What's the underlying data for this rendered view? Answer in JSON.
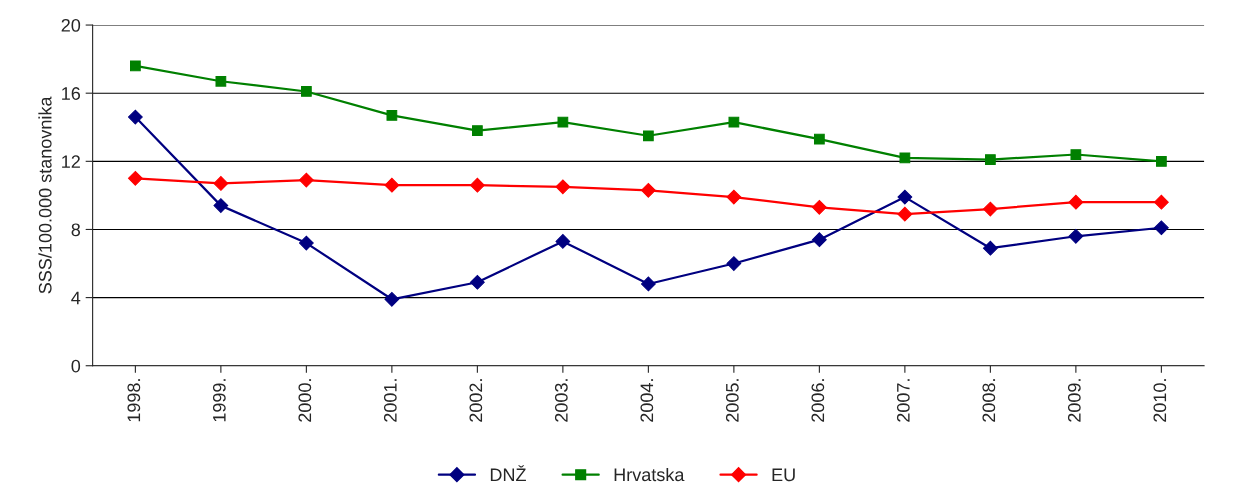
{
  "chart_data": {
    "type": "line",
    "ylabel": "SSS/100.000 stanovnika",
    "categories": [
      "1998.",
      "1999.",
      "2000.",
      "2001.",
      "2002.",
      "2003.",
      "2004.",
      "2005.",
      "2006.",
      "2007.",
      "2008.",
      "2009.",
      "2010."
    ],
    "series": [
      {
        "name": "DNŽ",
        "color": "#000080",
        "marker": "diamond",
        "values": [
          14.6,
          9.4,
          7.2,
          3.9,
          4.9,
          7.3,
          4.8,
          6.0,
          7.4,
          9.9,
          6.9,
          7.6,
          8.1
        ]
      },
      {
        "name": "Hrvatska",
        "color": "#008000",
        "marker": "square",
        "values": [
          17.6,
          16.7,
          16.1,
          14.7,
          13.8,
          14.3,
          13.5,
          14.3,
          13.3,
          12.2,
          12.1,
          12.4,
          12.0
        ]
      },
      {
        "name": "EU",
        "color": "#ff0000",
        "marker": "diamond",
        "values": [
          11.0,
          10.7,
          10.9,
          10.6,
          10.6,
          10.5,
          10.3,
          9.9,
          9.3,
          8.9,
          9.2,
          9.6,
          9.6
        ]
      }
    ],
    "ylim": [
      0,
      20
    ],
    "yticks": [
      0,
      4,
      8,
      12,
      16,
      20
    ],
    "grid": "y",
    "legend": "bottom",
    "line_style": "solid"
  }
}
